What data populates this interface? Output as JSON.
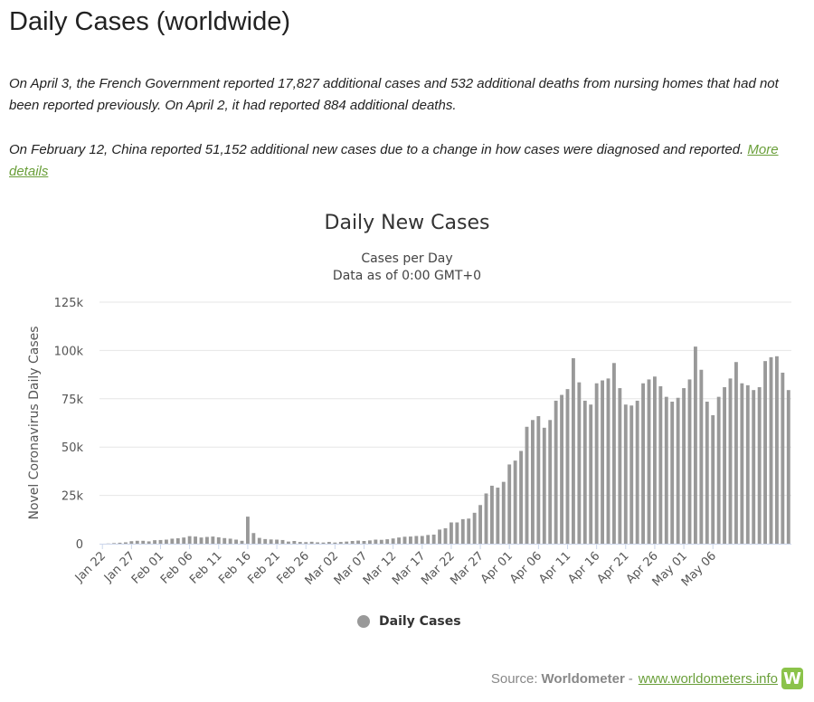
{
  "page": {
    "title": "Daily Cases (worldwide)",
    "note1": "On April 3, the French Government reported 17,827 additional cases and 532 additional deaths from nursing homes that had not been reported previously. On April 2, it had reported 884 additional deaths.",
    "note2_text": "On February 12, China reported 51,152 additional new cases due to a change in how cases were diagnosed and reported.",
    "note2_link": "More details"
  },
  "chart_data": {
    "type": "bar",
    "title": "Daily New Cases",
    "subtitle1": "Cases per Day",
    "subtitle2": "Data as of 0:00 GMT+0",
    "ylabel": "Novel Coronavirus Daily Cases",
    "ylim": [
      0,
      125000
    ],
    "yticks": [
      0,
      25000,
      50000,
      75000,
      100000,
      125000
    ],
    "ytick_labels": [
      "0",
      "25k",
      "50k",
      "75k",
      "100k",
      "125k"
    ],
    "xtick_labels": [
      "Jan 22",
      "Jan 27",
      "Feb 01",
      "Feb 06",
      "Feb 11",
      "Feb 16",
      "Feb 21",
      "Feb 26",
      "Mar 02",
      "Mar 07",
      "Mar 12",
      "Mar 17",
      "Mar 22",
      "Mar 27",
      "Apr 01",
      "Apr 06",
      "Apr 11",
      "Apr 16",
      "Apr 21",
      "Apr 26",
      "May 01",
      "May 06"
    ],
    "first_date": "Jan 22",
    "series": [
      {
        "name": "Daily Cases",
        "color": "#999999",
        "values": [
          0,
          100,
          300,
          500,
          700,
          1300,
          1500,
          1500,
          1200,
          1800,
          1900,
          2100,
          2600,
          2800,
          3200,
          3900,
          3700,
          3200,
          3500,
          3700,
          3300,
          2900,
          2600,
          2100,
          1500,
          14000,
          5500,
          3000,
          2400,
          2200,
          2100,
          1900,
          1100,
          1400,
          900,
          800,
          1000,
          700,
          600,
          900,
          600,
          900,
          1100,
          1400,
          1600,
          1400,
          1700,
          2100,
          2000,
          2300,
          2700,
          3200,
          3600,
          3700,
          4000,
          4000,
          4500,
          4700,
          7300,
          8000,
          11000,
          11000,
          12700,
          13000,
          16000,
          20000,
          26000,
          30000,
          29000,
          32000,
          41000,
          43000,
          48000,
          60500,
          64000,
          66000,
          60000,
          64000,
          74000,
          77000,
          80000,
          96000,
          83500,
          74000,
          72000,
          83000,
          84500,
          85500,
          93500,
          80500,
          72000,
          71500,
          74000,
          83000,
          85000,
          86500,
          81500,
          76000,
          73500,
          75500,
          80500,
          85000,
          102000,
          90000,
          73500,
          66500,
          76000,
          81000,
          85500,
          94000,
          83000,
          82000,
          79500,
          81000,
          94500,
          96500,
          97000,
          88500,
          79500
        ]
      }
    ],
    "grid": true,
    "legend_position": "bottom-center"
  },
  "source": {
    "prefix": "Source:",
    "name": "Worldometer",
    "separator": "-",
    "link": "www.worldometers.info",
    "logo_letter": "W"
  }
}
